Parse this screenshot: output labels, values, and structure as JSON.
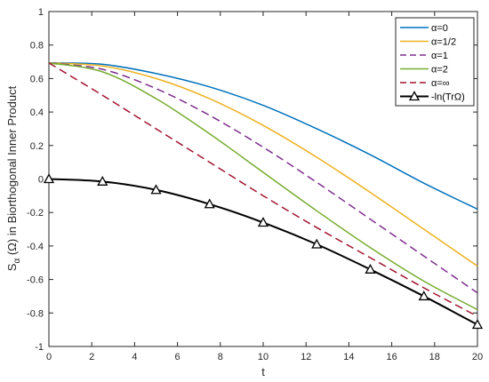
{
  "chart_data": {
    "type": "line",
    "xlabel": "t",
    "ylabel": "S_α (Ω) in Biorthogonal Inner Product",
    "xlim": [
      0,
      20
    ],
    "ylim": [
      -1,
      1
    ],
    "xticks": [
      0,
      2,
      4,
      6,
      8,
      10,
      12,
      14,
      16,
      18,
      20
    ],
    "yticks": [
      -1,
      -0.8,
      -0.6,
      -0.4,
      -0.2,
      0,
      0.2,
      0.4,
      0.6,
      0.8,
      1
    ],
    "xtick_labels": [
      "0",
      "2",
      "4",
      "6",
      "8",
      "10",
      "12",
      "14",
      "16",
      "18",
      "20"
    ],
    "ytick_labels": [
      "-1",
      "-0.8",
      "-0.6",
      "-0.4",
      "-0.2",
      "0",
      "0.2",
      "0.4",
      "0.6",
      "0.8",
      "1"
    ],
    "grid": false,
    "legend_position": "top-right",
    "x": [
      0,
      2.5,
      5,
      7.5,
      10,
      12.5,
      15,
      17.5,
      20
    ],
    "series": [
      {
        "name": "α=0",
        "color": "#0072bd",
        "dash": "solid",
        "values": [
          0.693,
          0.685,
          0.63,
          0.55,
          0.44,
          0.3,
          0.145,
          -0.025,
          -0.18
        ]
      },
      {
        "name": "α=1/2",
        "color": "#edb120",
        "dash": "solid",
        "values": [
          0.693,
          0.675,
          0.6,
          0.48,
          0.32,
          0.13,
          -0.08,
          -0.3,
          -0.52
        ]
      },
      {
        "name": "α=1",
        "color": "#7e2f8e",
        "dash": "dashed",
        "values": [
          0.693,
          0.655,
          0.54,
          0.38,
          0.19,
          -0.02,
          -0.24,
          -0.46,
          -0.68
        ]
      },
      {
        "name": "α=2",
        "color": "#77ac30",
        "dash": "solid",
        "values": [
          0.693,
          0.64,
          0.48,
          0.27,
          0.04,
          -0.19,
          -0.41,
          -0.61,
          -0.78
        ]
      },
      {
        "name": "α=∞",
        "color": "#a2142f",
        "dash": "dashed",
        "values": [
          0.693,
          0.5,
          0.3,
          0.1,
          -0.1,
          -0.29,
          -0.47,
          -0.65,
          -0.82
        ]
      },
      {
        "name": "-ln(TrΩ)",
        "color": "#000000",
        "dash": "solid",
        "marker": "triangle",
        "values": [
          0.0,
          -0.015,
          -0.065,
          -0.15,
          -0.26,
          -0.39,
          -0.54,
          -0.7,
          -0.87
        ]
      }
    ]
  }
}
